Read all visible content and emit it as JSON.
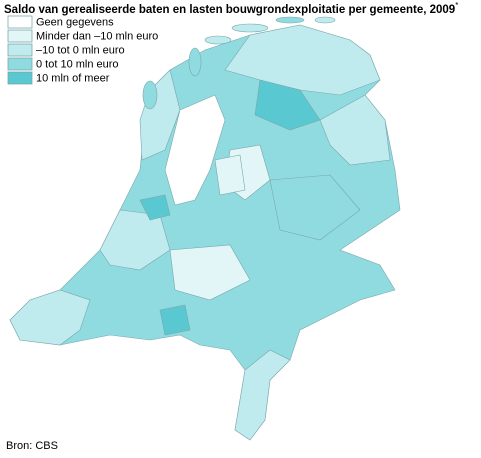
{
  "title": "Saldo van gerealiseerde baten en lasten bouwgrondexploitatie per gemeente, 2009",
  "title_note": "*",
  "legend": [
    {
      "label": "Geen gegevens",
      "color": "#ffffff"
    },
    {
      "label": "Minder dan –10 mln euro",
      "color": "#e2f6f7"
    },
    {
      "label": "–10 tot 0 mln euro",
      "color": "#bfebee"
    },
    {
      "label": "0 tot 10 mln euro",
      "color": "#8fdbe0"
    },
    {
      "label": "10 mln of meer",
      "color": "#5ac8d0"
    }
  ],
  "source": "Bron: CBS"
}
